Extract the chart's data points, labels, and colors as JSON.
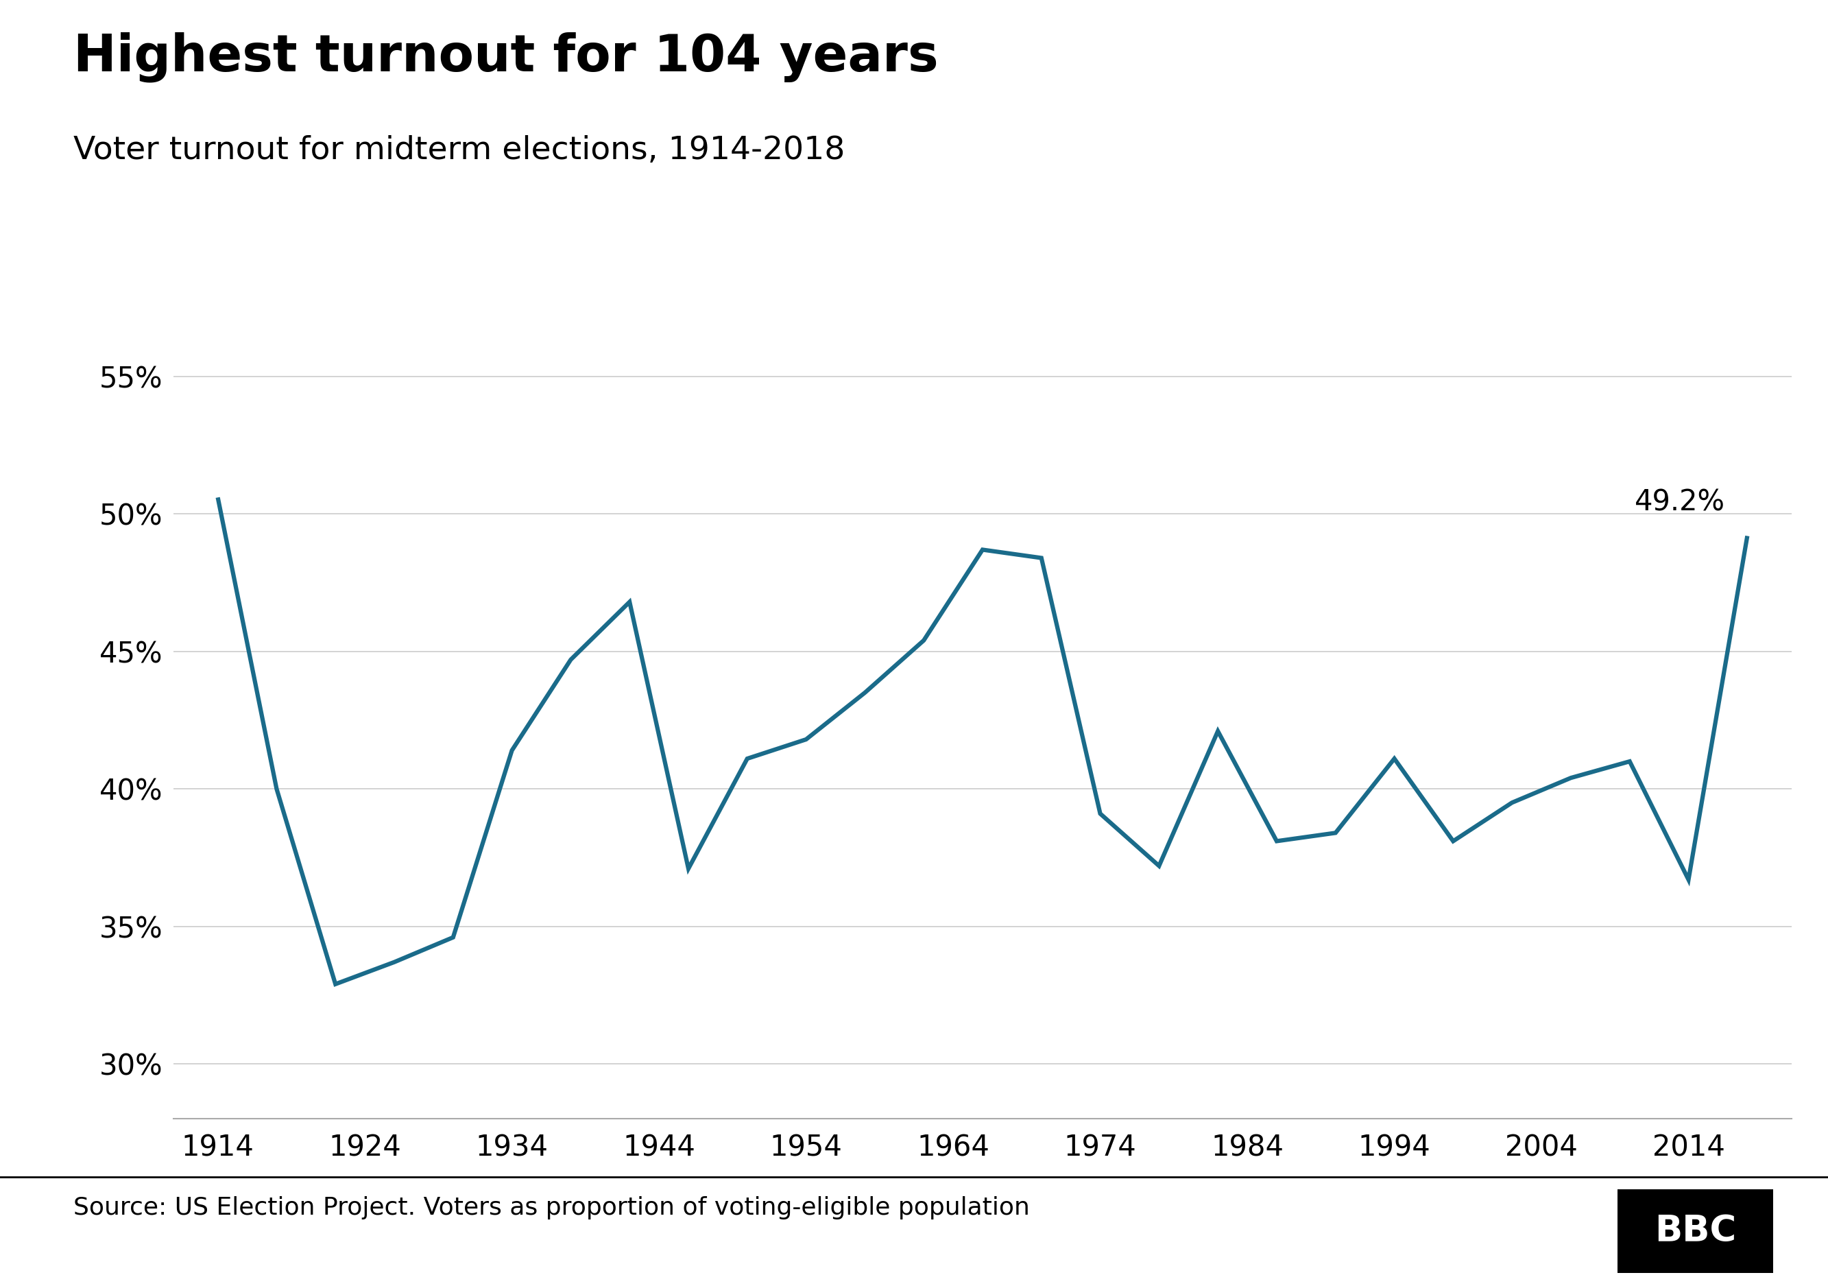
{
  "title": "Highest turnout for 104 years",
  "subtitle": "Voter turnout for midterm elections, 1914-2018",
  "source_text": "Source: US Election Project. Voters as proportion of voting-eligible population",
  "years": [
    1914,
    1918,
    1922,
    1926,
    1930,
    1934,
    1938,
    1942,
    1946,
    1950,
    1954,
    1958,
    1962,
    1966,
    1970,
    1974,
    1978,
    1982,
    1986,
    1990,
    1994,
    1998,
    2002,
    2006,
    2010,
    2014,
    2018
  ],
  "turnout": [
    50.6,
    40.0,
    32.9,
    33.7,
    34.6,
    41.4,
    44.7,
    46.8,
    37.1,
    41.1,
    41.8,
    43.5,
    45.4,
    48.7,
    48.4,
    39.1,
    37.2,
    42.1,
    38.1,
    38.4,
    41.1,
    38.1,
    39.5,
    40.4,
    41.0,
    36.7,
    49.2
  ],
  "line_color": "#1a6b8a",
  "line_width": 4.5,
  "annotation_text": "49.2%",
  "annotation_year": 2018,
  "annotation_value": 49.2,
  "yticks": [
    30,
    35,
    40,
    45,
    50,
    55
  ],
  "xticks": [
    1914,
    1924,
    1934,
    1944,
    1954,
    1964,
    1974,
    1984,
    1994,
    2004,
    2014
  ],
  "ylim": [
    28,
    57
  ],
  "xlim": [
    1911,
    2021
  ],
  "background_color": "#ffffff",
  "grid_color": "#cccccc",
  "title_fontsize": 54,
  "subtitle_fontsize": 34,
  "tick_fontsize": 30,
  "source_fontsize": 26,
  "annotation_fontsize": 30,
  "bbc_box_color": "#000000",
  "bbc_text_color": "#ffffff"
}
